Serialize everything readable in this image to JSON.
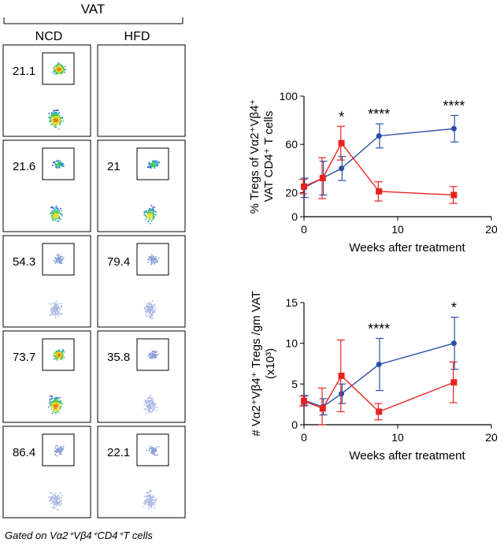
{
  "flow": {
    "group_label": "VAT",
    "col_ncd": "NCD",
    "col_hfd": "HFD",
    "rows": [
      {
        "ncd": "21.1",
        "hfd": ""
      },
      {
        "ncd": "21.6",
        "hfd": "21"
      },
      {
        "ncd": "54.3",
        "hfd": "79.4"
      },
      {
        "ncd": "73.7",
        "hfd": "35.8"
      },
      {
        "ncd": "86.4",
        "hfd": "22.1"
      }
    ],
    "footnote": "Gated on Vα2⁺Vβ4⁺CD4⁺T cells"
  },
  "colors": {
    "ncd": "#2b4fa8",
    "hfd": "#e8231f",
    "text": "#000000"
  },
  "chart_data": [
    {
      "type": "line",
      "ylabel": "% Tregs of Vα2⁺Vβ4⁺ VAT CD4⁺ T cells",
      "xlabel": "Weeks after treatment",
      "xlim": [
        0,
        20
      ],
      "ylim": [
        0,
        100
      ],
      "xticks": [
        0,
        10,
        20
      ],
      "yticks": [
        0,
        20,
        60,
        100
      ],
      "series": [
        {
          "color": "#2b4fa8",
          "marker": "circle",
          "x": [
            0,
            2,
            4,
            8,
            16
          ],
          "y": [
            24,
            32,
            40,
            67,
            73
          ],
          "err": [
            8,
            14,
            10,
            10,
            11
          ]
        },
        {
          "color": "#e8231f",
          "marker": "square",
          "x": [
            0,
            2,
            4,
            8,
            16
          ],
          "y": [
            25,
            32,
            61,
            21,
            18
          ],
          "err": [
            6,
            17,
            14,
            8,
            7
          ]
        }
      ],
      "annotations": [
        {
          "x": 4,
          "text": "*"
        },
        {
          "x": 8,
          "text": "****"
        },
        {
          "x": 16,
          "text": "****"
        }
      ]
    },
    {
      "type": "line",
      "ylabel": "# Vα2⁺Vβ4⁺ Tregs /gm VAT",
      "ylabel2": "(x10³)",
      "xlabel": "Weeks after treatment",
      "xlim": [
        0,
        20
      ],
      "ylim": [
        0,
        15
      ],
      "xticks": [
        0,
        10,
        20
      ],
      "yticks": [
        0,
        5,
        10,
        15
      ],
      "series": [
        {
          "color": "#2b4fa8",
          "marker": "circle",
          "x": [
            0,
            2,
            4,
            8,
            16
          ],
          "y": [
            3.0,
            2.2,
            3.8,
            7.4,
            10.0
          ],
          "err": [
            0.6,
            1.0,
            1.2,
            3.2,
            3.2
          ]
        },
        {
          "color": "#e8231f",
          "marker": "square",
          "x": [
            0,
            2,
            4,
            8,
            16
          ],
          "y": [
            2.9,
            2.0,
            6.0,
            1.6,
            5.2
          ],
          "err": [
            0.6,
            2.5,
            4.4,
            1.0,
            2.5
          ]
        }
      ],
      "annotations": [
        {
          "x": 8,
          "text": "****"
        },
        {
          "x": 16,
          "text": "*"
        }
      ]
    }
  ]
}
